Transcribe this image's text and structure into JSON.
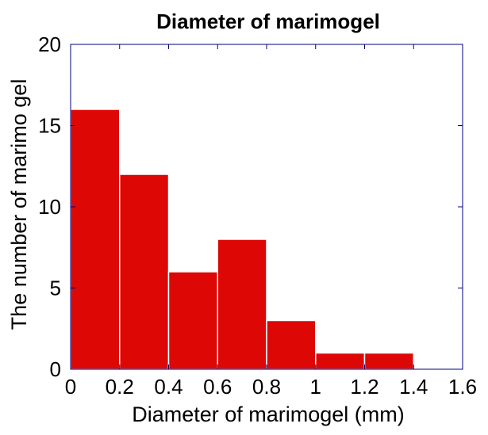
{
  "chart_data": {
    "type": "bar",
    "title": "Diameter of marimogel",
    "xlabel": "Diameter of marimogel (mm)",
    "ylabel": "The number of marimo gel",
    "bins": [
      {
        "start": 0.0,
        "end": 0.2,
        "count": 16
      },
      {
        "start": 0.2,
        "end": 0.4,
        "count": 12
      },
      {
        "start": 0.4,
        "end": 0.6,
        "count": 6
      },
      {
        "start": 0.6,
        "end": 0.8,
        "count": 8
      },
      {
        "start": 0.8,
        "end": 1.0,
        "count": 3
      },
      {
        "start": 1.0,
        "end": 1.2,
        "count": 1
      },
      {
        "start": 1.2,
        "end": 1.4,
        "count": 1
      }
    ],
    "xlim": [
      0,
      1.6
    ],
    "ylim": [
      0,
      20
    ],
    "xticks": [
      0,
      0.2,
      0.4,
      0.6,
      0.8,
      1,
      1.2,
      1.4,
      1.6
    ],
    "xtick_labels": [
      "0",
      "0.2",
      "0.4",
      "0.6",
      "0.8",
      "1",
      "1.2",
      "1.4",
      "1.6"
    ],
    "yticks": [
      0,
      5,
      10,
      15,
      20
    ],
    "ytick_labels": [
      "0",
      "5",
      "10",
      "15",
      "20"
    ],
    "grid": false,
    "colors": {
      "bar_fill": "#dd0806",
      "bar_edge": "#ffffff",
      "axes_frame": "#000080",
      "text": "#000000"
    }
  }
}
